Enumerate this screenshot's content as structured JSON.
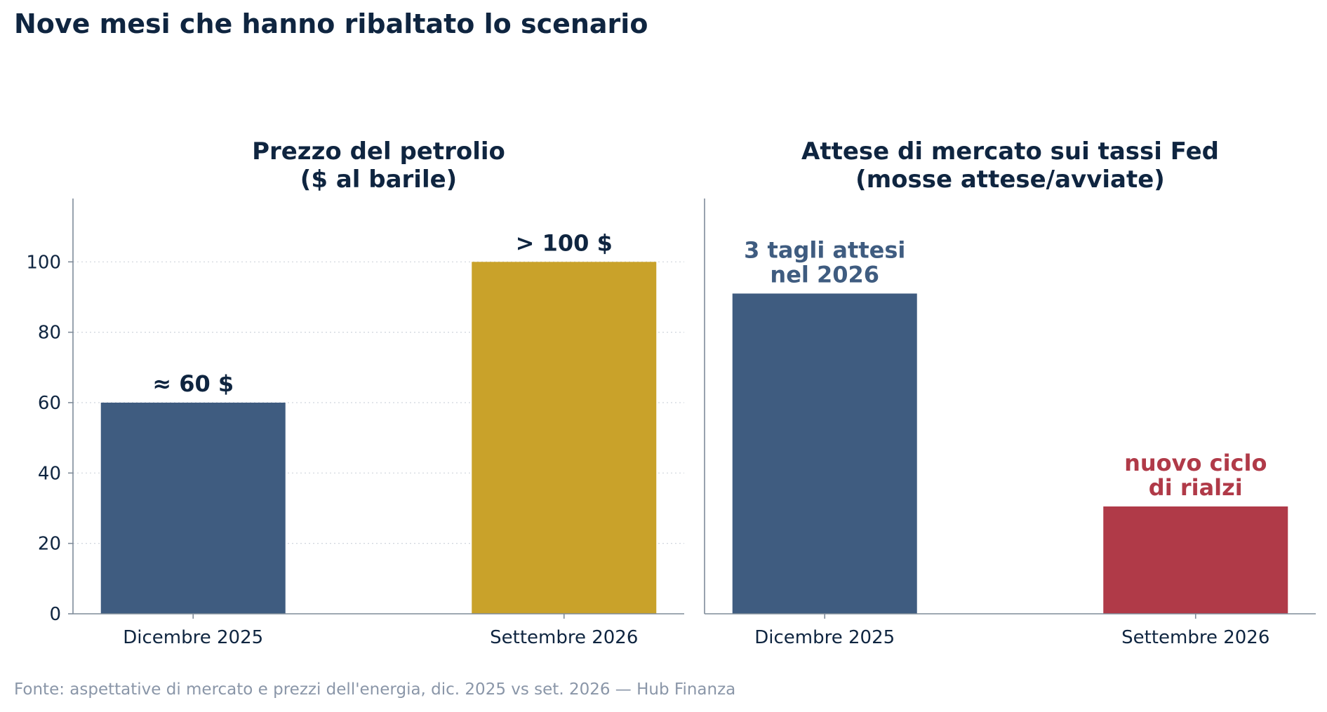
{
  "title": "Nove mesi che hanno ribaltato lo scenario",
  "source": "Fonte: aspettative di mercato e prezzi dell'energia, dic. 2025 vs set. 2026 — Hub Finanza",
  "chart_data": [
    {
      "type": "bar",
      "title_lines": [
        "Prezzo del petrolio",
        "($ al barile)"
      ],
      "categories": [
        "Dicembre 2025",
        "Settembre 2026"
      ],
      "values": [
        60,
        100
      ],
      "bar_colors": [
        "#3f5c80",
        "#c9a22a"
      ],
      "bar_labels": [
        [
          "≈ 60 $"
        ],
        [
          "> 100 $"
        ]
      ],
      "label_colors": [
        "#0f2540",
        "#0f2540"
      ],
      "ylim": [
        0,
        118
      ],
      "yticks": [
        0,
        20,
        40,
        60,
        80,
        100
      ],
      "grid": true,
      "y_axis_labels": true
    },
    {
      "type": "bar",
      "title_lines": [
        "Attese di mercato sui tassi Fed",
        "(mosse attese/avviate)"
      ],
      "categories": [
        "Dicembre 2025",
        "Settembre 2026"
      ],
      "values": [
        91,
        30.5
      ],
      "bar_colors": [
        "#3f5c80",
        "#b03a48"
      ],
      "bar_labels": [
        [
          "3 tagli attesi",
          "nel 2026"
        ],
        [
          "nuovo ciclo",
          "di rialzi"
        ]
      ],
      "label_colors": [
        "#3f5c80",
        "#b03a48"
      ],
      "ylim": [
        0,
        118
      ],
      "yticks": [],
      "grid": false,
      "y_axis_labels": false
    }
  ]
}
